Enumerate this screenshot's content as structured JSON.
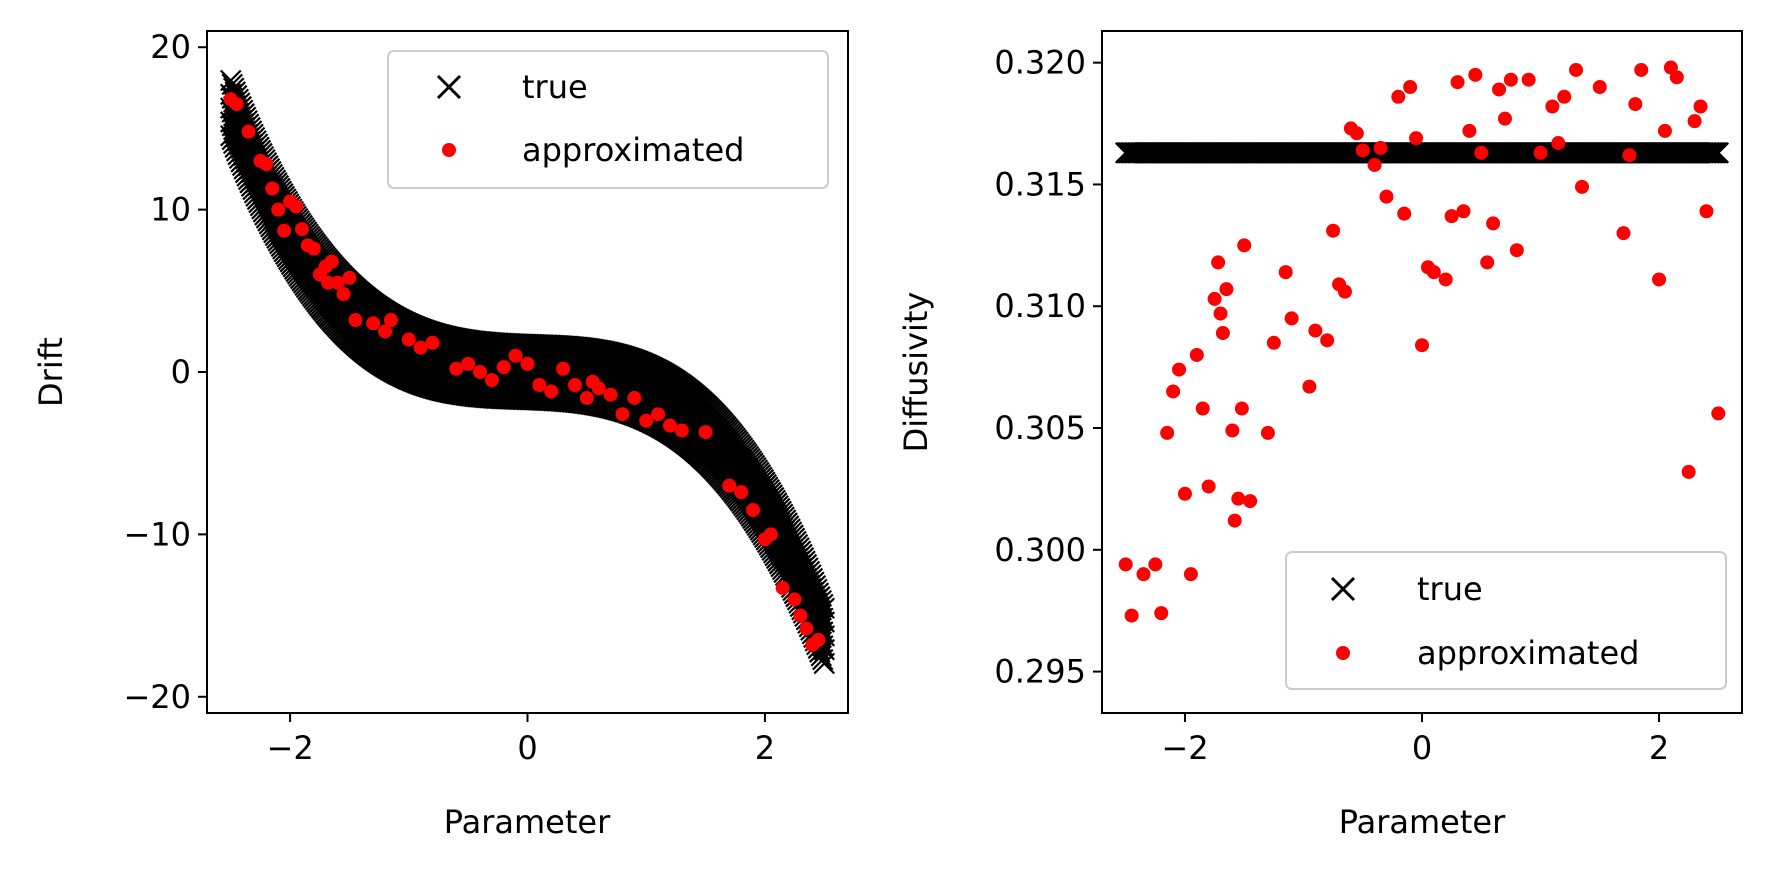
{
  "chart_data": [
    {
      "type": "scatter",
      "title": "",
      "xlabel": "Parameter",
      "ylabel": "Drift",
      "xlim": [
        -2.7,
        2.7
      ],
      "ylim": [
        -21,
        21
      ],
      "xticks": [
        -2,
        0,
        2
      ],
      "yticks": [
        -20,
        -10,
        0,
        10,
        20
      ],
      "xtick_labels": [
        "−2",
        "0",
        "2"
      ],
      "ytick_labels": [
        "−20",
        "−10",
        "0",
        "10",
        "20"
      ],
      "legend": {
        "position": "upper right",
        "entries": [
          "true",
          "approximated"
        ]
      },
      "true_curve": {
        "name": "true",
        "marker": "x",
        "color": "#000000",
        "x_range": [
          -2.5,
          2.5
        ],
        "formula": "y = -(x^3 + 0.25x)",
        "band_halfwidth": 1.7
      },
      "series": [
        {
          "name": "approximated",
          "marker": "o",
          "color": "#ff0000",
          "x": [
            -2.5,
            -2.45,
            -2.35,
            -2.25,
            -2.2,
            -2.15,
            -2.1,
            -2.05,
            -2.0,
            -1.95,
            -1.9,
            -1.85,
            -1.8,
            -1.75,
            -1.7,
            -1.68,
            -1.65,
            -1.6,
            -1.55,
            -1.5,
            -1.45,
            -1.3,
            -1.2,
            -1.15,
            -1.0,
            -0.9,
            -0.8,
            -0.6,
            -0.5,
            -0.4,
            -0.3,
            -0.2,
            -0.1,
            0.0,
            0.1,
            0.2,
            0.3,
            0.4,
            0.5,
            0.55,
            0.6,
            0.7,
            0.8,
            0.9,
            1.0,
            1.1,
            1.2,
            1.3,
            1.5,
            1.7,
            1.8,
            1.9,
            2.0,
            2.05,
            2.15,
            2.25,
            2.3,
            2.35,
            2.4,
            2.45
          ],
          "y": [
            16.8,
            16.5,
            14.8,
            13.0,
            12.8,
            11.3,
            10.0,
            8.7,
            10.5,
            10.2,
            8.8,
            7.8,
            7.6,
            6.0,
            6.5,
            5.5,
            6.8,
            5.5,
            4.8,
            5.8,
            3.2,
            3.0,
            2.5,
            3.2,
            2.0,
            1.5,
            1.8,
            0.2,
            0.5,
            0.0,
            -0.5,
            0.3,
            1.0,
            0.5,
            -0.8,
            -1.2,
            0.2,
            -0.8,
            -1.6,
            -0.6,
            -1.0,
            -1.4,
            -2.6,
            -1.6,
            -3.0,
            -2.6,
            -3.3,
            -3.6,
            -3.7,
            -7.0,
            -7.4,
            -8.5,
            -10.3,
            -10.0,
            -13.3,
            -14.0,
            -15.0,
            -15.8,
            -16.8,
            -16.5
          ]
        }
      ]
    },
    {
      "type": "scatter",
      "title": "",
      "xlabel": "Parameter",
      "ylabel": "Diffusivity",
      "xlim": [
        -2.7,
        2.7
      ],
      "ylim": [
        0.2933,
        0.3213
      ],
      "xticks": [
        -2,
        0,
        2
      ],
      "yticks": [
        0.295,
        0.3,
        0.305,
        0.31,
        0.315,
        0.32
      ],
      "xtick_labels": [
        "−2",
        "0",
        "2"
      ],
      "ytick_labels": [
        "0.295",
        "0.300",
        "0.305",
        "0.310",
        "0.315",
        "0.320"
      ],
      "legend": {
        "position": "lower right",
        "entries": [
          "true",
          "approximated"
        ]
      },
      "true_curve": {
        "name": "true",
        "marker": "x",
        "color": "#000000",
        "x_range": [
          -2.5,
          2.5
        ],
        "y": 0.3163
      },
      "series": [
        {
          "name": "approximated",
          "marker": "o",
          "color": "#ff0000",
          "x": [
            -2.5,
            -2.45,
            -2.35,
            -2.25,
            -2.2,
            -2.15,
            -2.1,
            -2.05,
            -2.0,
            -1.95,
            -1.9,
            -1.85,
            -1.8,
            -1.75,
            -1.72,
            -1.7,
            -1.68,
            -1.65,
            -1.6,
            -1.58,
            -1.55,
            -1.52,
            -1.5,
            -1.45,
            -1.3,
            -1.25,
            -1.15,
            -1.1,
            -0.95,
            -0.9,
            -0.8,
            -0.75,
            -0.7,
            -0.65,
            -0.6,
            -0.55,
            -0.5,
            -0.4,
            -0.35,
            -0.3,
            -0.2,
            -0.15,
            -0.1,
            -0.05,
            0.0,
            0.05,
            0.1,
            0.2,
            0.25,
            0.3,
            0.35,
            0.4,
            0.45,
            0.5,
            0.55,
            0.6,
            0.65,
            0.7,
            0.75,
            0.8,
            0.9,
            1.0,
            1.1,
            1.15,
            1.2,
            1.3,
            1.35,
            1.5,
            1.7,
            1.75,
            1.8,
            1.85,
            2.0,
            2.05,
            2.1,
            2.15,
            2.25,
            2.3,
            2.35,
            2.4,
            2.5
          ],
          "y": [
            0.2994,
            0.2973,
            0.299,
            0.2994,
            0.2974,
            0.3048,
            0.3065,
            0.3074,
            0.3023,
            0.299,
            0.308,
            0.3058,
            0.3026,
            0.3103,
            0.3118,
            0.3097,
            0.3089,
            0.3107,
            0.3049,
            0.3012,
            0.3021,
            0.3058,
            0.3125,
            0.302,
            0.3048,
            0.3085,
            0.3114,
            0.3095,
            0.3067,
            0.309,
            0.3086,
            0.3131,
            0.3109,
            0.3106,
            0.3173,
            0.3171,
            0.3164,
            0.3158,
            0.3165,
            0.3145,
            0.3186,
            0.3138,
            0.319,
            0.3169,
            0.3084,
            0.3116,
            0.3114,
            0.3111,
            0.3137,
            0.3192,
            0.3139,
            0.3172,
            0.3195,
            0.3163,
            0.3118,
            0.3134,
            0.3189,
            0.3177,
            0.3193,
            0.3123,
            0.3193,
            0.3163,
            0.3182,
            0.3167,
            0.3186,
            0.3197,
            0.3149,
            0.319,
            0.313,
            0.3162,
            0.3183,
            0.3197,
            0.3111,
            0.3172,
            0.3198,
            0.3194,
            0.3032,
            0.3176,
            0.3182,
            0.3139,
            0.3056
          ]
        }
      ]
    }
  ]
}
